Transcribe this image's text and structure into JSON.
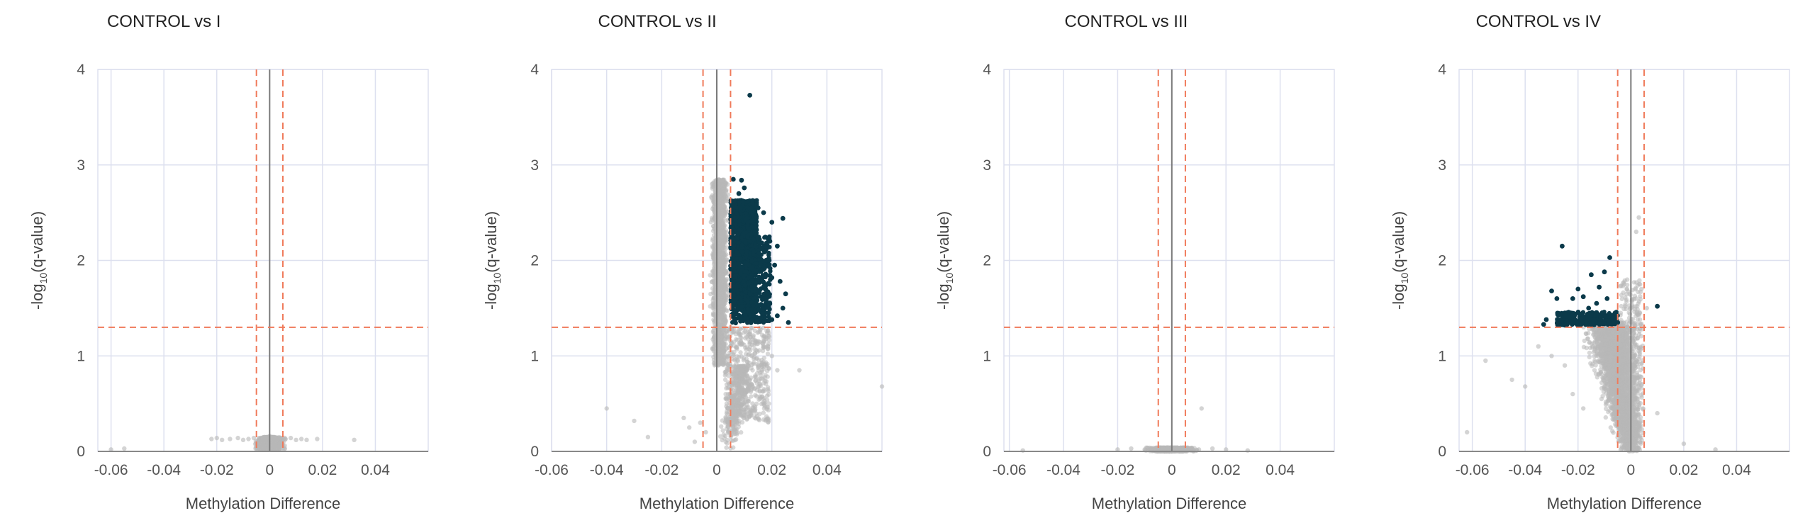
{
  "colors": {
    "significant": "#0b3a4a",
    "nonsignificant": "#b8b8b8",
    "threshold": "#f07a5a",
    "zero_line": "#7a7a7a",
    "grid": "#dde0ef"
  },
  "chart_data": [
    {
      "type": "scatter",
      "title": "CONTROL vs I",
      "xlabel": "Methylation Difference",
      "ylabel": "-log10(q-value)",
      "xlim": [
        -0.065,
        0.06
      ],
      "ylim": [
        0,
        4
      ],
      "x_ticks": [
        "-0.06",
        "-0.04",
        "-0.02",
        "0",
        "0.02",
        "0.04"
      ],
      "y_ticks": [
        "0",
        "1",
        "2",
        "3",
        "4"
      ],
      "thresholds": {
        "x": [
          -0.005,
          0.005
        ],
        "y": 1.3
      },
      "highlighted_points": [],
      "background_points": [
        [
          -0.022,
          0.13
        ],
        [
          -0.02,
          0.14
        ],
        [
          -0.018,
          0.12
        ],
        [
          -0.015,
          0.13
        ],
        [
          -0.012,
          0.14
        ],
        [
          -0.01,
          0.12
        ],
        [
          -0.008,
          0.13
        ],
        [
          -0.006,
          0.14
        ],
        [
          -0.004,
          0.12
        ],
        [
          -0.003,
          0.1
        ],
        [
          -0.002,
          0.15
        ],
        [
          -0.001,
          0.14
        ],
        [
          0,
          0.16
        ],
        [
          0.001,
          0.15
        ],
        [
          0.002,
          0.13
        ],
        [
          0.004,
          0.14
        ],
        [
          0.006,
          0.13
        ],
        [
          0.008,
          0.14
        ],
        [
          0.01,
          0.12
        ],
        [
          0.012,
          0.13
        ],
        [
          0.014,
          0.12
        ],
        [
          0.018,
          0.13
        ],
        [
          0.032,
          0.12
        ],
        [
          -0.06,
          0.02
        ],
        [
          -0.055,
          0.03
        ]
      ]
    },
    {
      "type": "scatter",
      "title": "CONTROL vs II",
      "xlabel": "Methylation Difference",
      "ylabel": "-log10(q-value)",
      "xlim": [
        -0.06,
        0.06
      ],
      "ylim": [
        0,
        4
      ],
      "x_ticks": [
        "-0.06",
        "-0.04",
        "-0.02",
        "0",
        "0.02",
        "0.04"
      ],
      "y_ticks": [
        "0",
        "1",
        "2",
        "3",
        "4"
      ],
      "thresholds": {
        "x": [
          -0.005,
          0.005
        ],
        "y": 1.3
      },
      "highlighted_points": [
        [
          0.012,
          3.73
        ],
        [
          0.006,
          2.85
        ],
        [
          0.009,
          2.84
        ],
        [
          0.01,
          2.76
        ],
        [
          0.008,
          2.7
        ],
        [
          0.013,
          2.6
        ],
        [
          0.015,
          2.55
        ],
        [
          0.017,
          2.5
        ],
        [
          0.02,
          2.4
        ],
        [
          0.024,
          2.44
        ],
        [
          0.019,
          2.2
        ],
        [
          0.022,
          2.15
        ],
        [
          0.018,
          2.0
        ],
        [
          0.021,
          1.95
        ],
        [
          0.02,
          1.82
        ],
        [
          0.023,
          1.78
        ],
        [
          0.025,
          1.65
        ],
        [
          0.024,
          1.5
        ],
        [
          0.022,
          1.42
        ],
        [
          0.02,
          1.38
        ],
        [
          0.026,
          1.35
        ],
        [
          0.016,
          1.4
        ]
      ],
      "background_points": [
        [
          -0.04,
          0.45
        ],
        [
          -0.03,
          0.32
        ],
        [
          -0.025,
          0.15
        ],
        [
          -0.012,
          0.35
        ],
        [
          -0.01,
          0.25
        ],
        [
          -0.008,
          0.1
        ],
        [
          -0.006,
          0.3
        ],
        [
          -0.004,
          0.2
        ],
        [
          0.01,
          0.6
        ],
        [
          0.012,
          0.75
        ],
        [
          0.015,
          0.9
        ],
        [
          0.02,
          1.0
        ],
        [
          0.022,
          0.85
        ],
        [
          0.03,
          0.85
        ],
        [
          0.06,
          0.68
        ],
        [
          0.017,
          1.1
        ],
        [
          0.019,
          1.2
        ],
        [
          0.014,
          1.15
        ]
      ]
    },
    {
      "type": "scatter",
      "title": "CONTROL vs III",
      "xlabel": "Methylation Difference",
      "ylabel": "-log10(q-value)",
      "xlim": [
        -0.062,
        0.06
      ],
      "ylim": [
        0,
        4
      ],
      "x_ticks": [
        "-0.06",
        "-0.04",
        "-0.02",
        "0",
        "0.02",
        "0.04"
      ],
      "y_ticks": [
        "0",
        "1",
        "2",
        "3",
        "4"
      ],
      "thresholds": {
        "x": [
          -0.005,
          0.005
        ],
        "y": 1.3
      },
      "highlighted_points": [],
      "background_points": [
        [
          -0.02,
          0.02
        ],
        [
          -0.015,
          0.03
        ],
        [
          -0.01,
          0.02
        ],
        [
          -0.005,
          0.03
        ],
        [
          0,
          0.02
        ],
        [
          0.005,
          0.03
        ],
        [
          0.01,
          0.02
        ],
        [
          0.015,
          0.03
        ],
        [
          0.02,
          0.02
        ],
        [
          0.011,
          0.45
        ],
        [
          -0.055,
          0.01
        ],
        [
          0.028,
          0.01
        ]
      ]
    },
    {
      "type": "scatter",
      "title": "CONTROL vs IV",
      "xlabel": "Methylation Difference",
      "ylabel": "-log10(q-value)",
      "xlim": [
        -0.065,
        0.06
      ],
      "ylim": [
        0,
        4
      ],
      "x_ticks": [
        "-0.06",
        "-0.04",
        "-0.02",
        "0",
        "0.02",
        "0.04"
      ],
      "y_ticks": [
        "0",
        "1",
        "2",
        "3",
        "4"
      ],
      "thresholds": {
        "x": [
          -0.005,
          0.005
        ],
        "y": 1.3
      },
      "highlighted_points": [
        [
          -0.026,
          2.15
        ],
        [
          -0.015,
          1.85
        ],
        [
          -0.012,
          1.72
        ],
        [
          -0.01,
          1.88
        ],
        [
          -0.008,
          2.03
        ],
        [
          -0.02,
          1.7
        ],
        [
          -0.018,
          1.62
        ],
        [
          -0.022,
          1.6
        ],
        [
          -0.028,
          1.6
        ],
        [
          -0.03,
          1.68
        ],
        [
          -0.032,
          1.38
        ],
        [
          -0.033,
          1.33
        ],
        [
          -0.025,
          1.45
        ],
        [
          -0.016,
          1.5
        ],
        [
          -0.013,
          1.55
        ],
        [
          -0.009,
          1.6
        ],
        [
          -0.006,
          1.45
        ],
        [
          -0.005,
          1.35
        ],
        [
          0.01,
          1.52
        ]
      ],
      "background_points": [
        [
          -0.062,
          0.2
        ],
        [
          -0.055,
          0.95
        ],
        [
          -0.045,
          0.75
        ],
        [
          -0.04,
          0.68
        ],
        [
          -0.035,
          1.1
        ],
        [
          -0.03,
          1.0
        ],
        [
          -0.025,
          0.9
        ],
        [
          0.003,
          2.45
        ],
        [
          0.002,
          2.3
        ],
        [
          0.004,
          1.7
        ],
        [
          0.006,
          1.5
        ],
        [
          0.01,
          0.4
        ],
        [
          0.02,
          0.08
        ],
        [
          0.032,
          0.02
        ],
        [
          -0.022,
          0.6
        ],
        [
          -0.018,
          0.45
        ]
      ]
    }
  ]
}
